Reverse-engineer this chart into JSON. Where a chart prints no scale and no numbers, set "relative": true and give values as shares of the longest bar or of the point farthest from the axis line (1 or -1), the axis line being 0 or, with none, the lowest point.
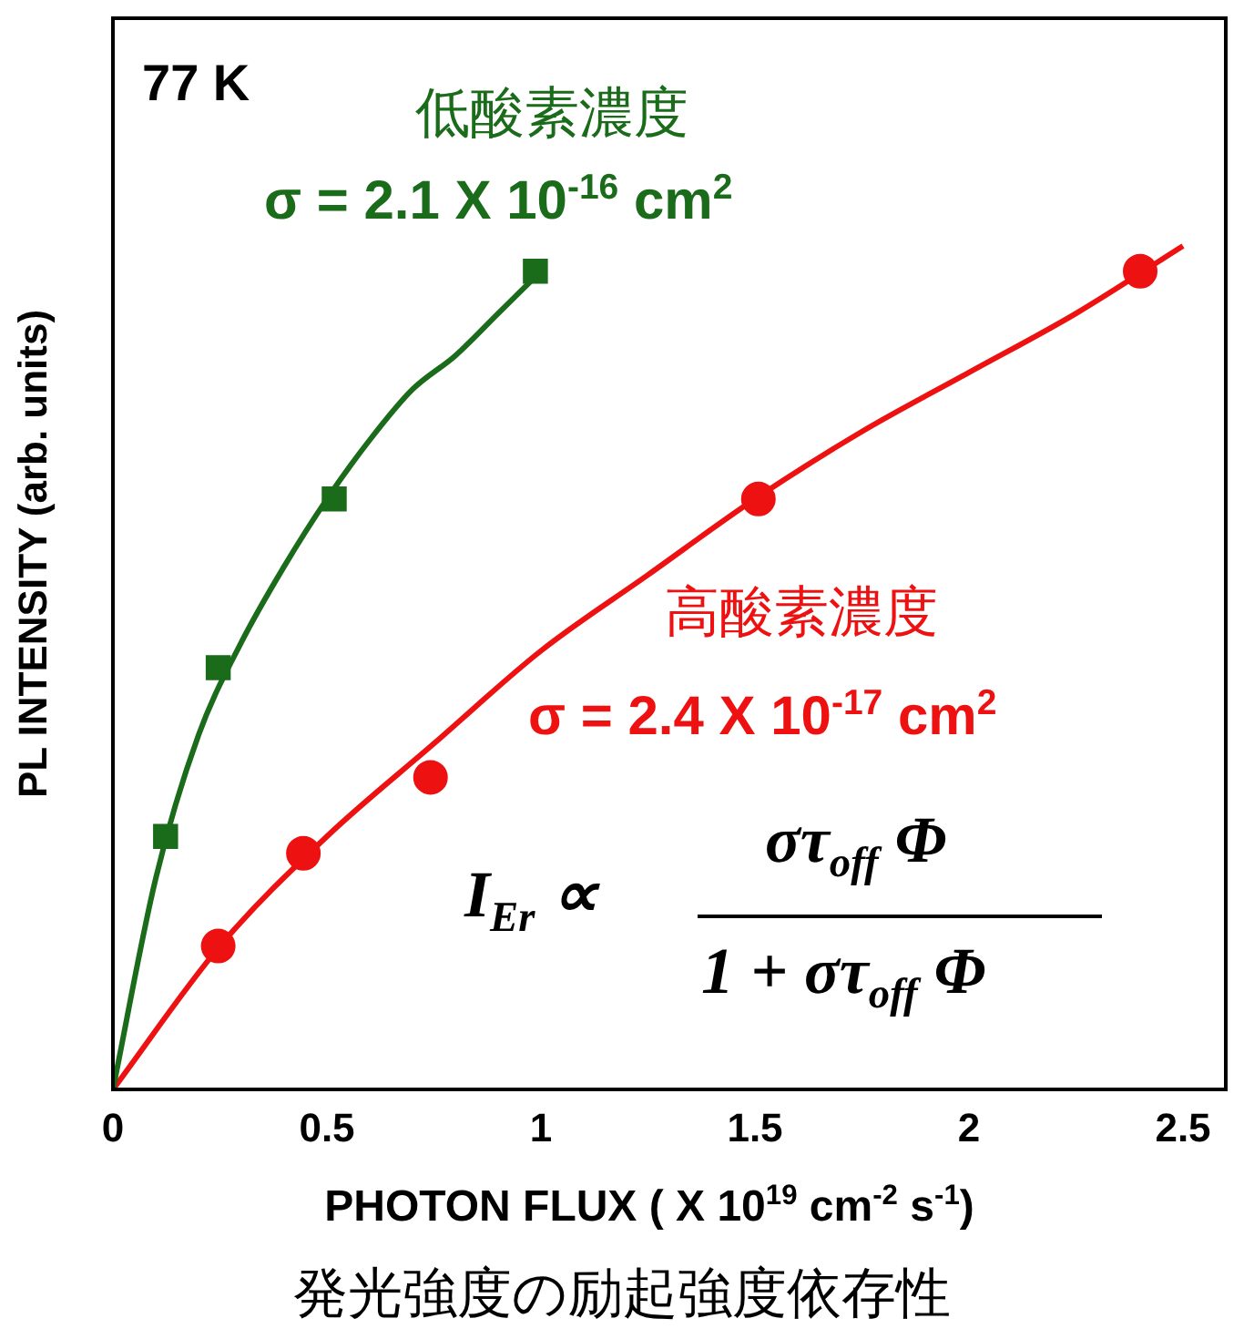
{
  "chart_data": {
    "type": "scatter",
    "relative": true,
    "xlabel": "PHOTON FLUX ( X 10$^{19}$ cm$^{-2}$ s$^{-1}$)",
    "ylabel": "PL INTENSITY (arb. units)",
    "xlim": [
      0,
      2.6
    ],
    "xticks": [
      0,
      0.5,
      1,
      1.5,
      2,
      2.5
    ],
    "grid": false,
    "legend": false,
    "series": [
      {
        "name": "低酸素濃度",
        "marker": "square",
        "color": "#1a6b1a",
        "x": [
          0.123,
          0.246,
          0.517,
          0.987
        ],
        "values": [
          0.3,
          0.5,
          0.7,
          0.97
        ]
      },
      {
        "name": "高酸素濃度",
        "marker": "circle",
        "color": "#ee1111",
        "x": [
          0.246,
          0.445,
          0.742,
          1.508,
          2.4
        ],
        "values": [
          0.17,
          0.28,
          0.37,
          0.7,
          0.97
        ]
      },
      {
        "type": "line",
        "marker": "none",
        "color": "#1a6b1a",
        "x": [
          0,
          0.1,
          0.2,
          0.3,
          0.4,
          0.5,
          0.6,
          0.7,
          0.8,
          0.9,
          1.0
        ],
        "values": [
          0,
          0.25,
          0.42,
          0.53,
          0.62,
          0.7,
          0.77,
          0.83,
          0.87,
          0.92,
          0.97
        ]
      },
      {
        "type": "line",
        "marker": "none",
        "color": "#ee1111",
        "x": [
          0,
          0.25,
          0.5,
          0.75,
          1,
          1.25,
          1.5,
          1.75,
          2,
          2.25,
          2.5
        ],
        "values": [
          0,
          0.17,
          0.3,
          0.41,
          0.52,
          0.61,
          0.7,
          0.78,
          0.85,
          0.92,
          1.0
        ]
      }
    ],
    "annotations": [
      "77 K",
      "σ = 2.1 X 10$^{-16}$ cm$^{2}$",
      "σ = 2.4 X 10$^{-17}$ cm$^{2}$",
      "I$_{Er}$ ∝",
      "στ$_{off}$ Φ",
      "1 + στ$_{off}$ Φ",
      "発光強度の励起強度依存性"
    ]
  }
}
